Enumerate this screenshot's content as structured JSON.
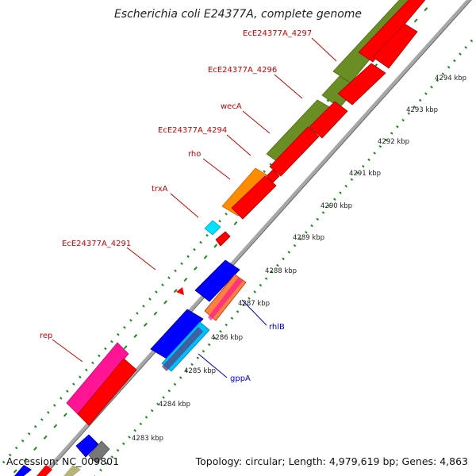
{
  "title": "Escherichia coli E24377A, complete genome",
  "footer": {
    "accession": "Accession: NC_009801",
    "topology": "Topology: circular; Length: 4,979,619 bp; Genes: 4,863"
  },
  "scale_labels": [
    "4283 kbp",
    "4284 kbp",
    "4285 kbp",
    "4286 kbp",
    "4287 kbp",
    "4288 kbp",
    "4289 kbp",
    "4290 kbp",
    "4291 kbp",
    "4292 kbp",
    "4293 kbp",
    "4294 kbp"
  ],
  "gene_labels": {
    "red": [
      "EcE24377A_4297",
      "EcE24377A_4296",
      "wecA",
      "EcE24377A_4294",
      "rho",
      "trxA",
      "EcE24377A_4291",
      "rep"
    ],
    "blue": [
      "rhlB",
      "gppA"
    ]
  },
  "colors": {
    "forward_cds": "#6a8e23",
    "reverse_cds": "#ff0000",
    "blue_feature": "#0000ff",
    "pink_feature": "#ff1493",
    "orange_feature": "#ff8c00",
    "cyan_feature": "#00bfff",
    "backbone": "#999999",
    "gc_dots": "#1a8a1a",
    "label_red": "#cc0000",
    "label_blue": "#0000cc"
  }
}
